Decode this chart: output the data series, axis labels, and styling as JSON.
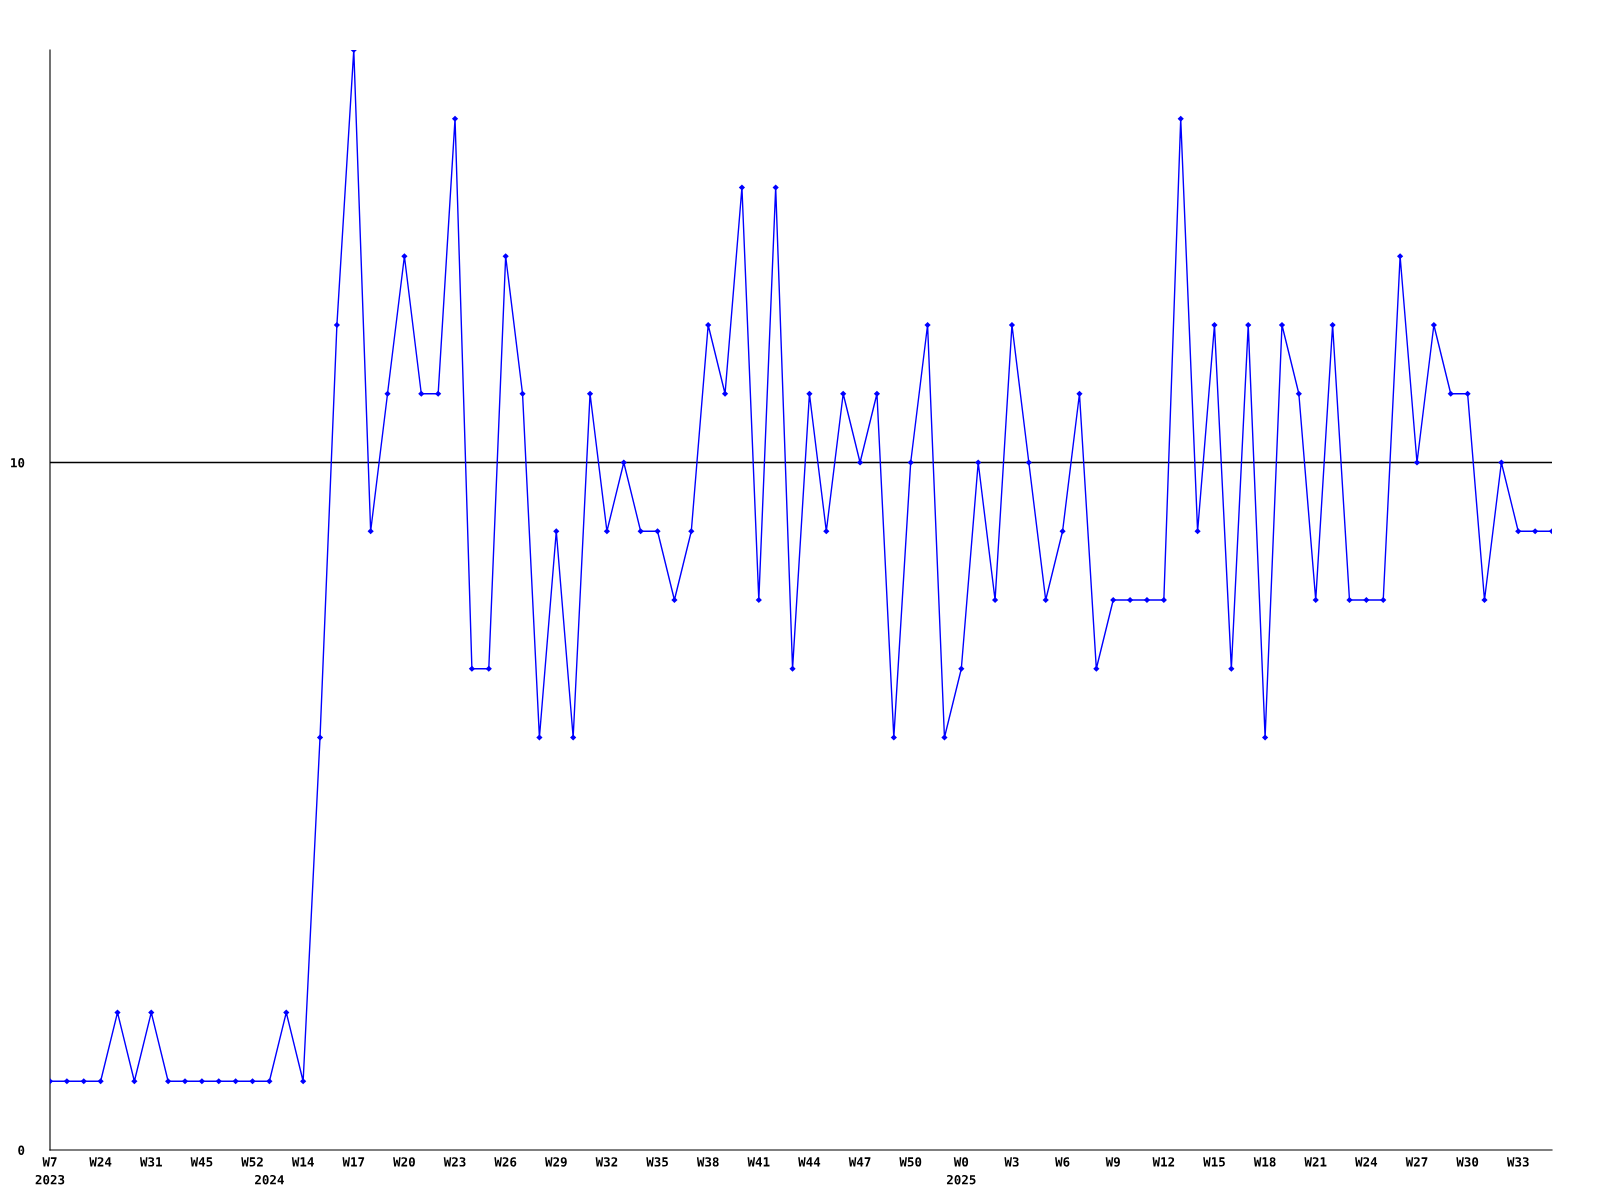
{
  "chart_data": {
    "type": "line",
    "categories": [
      "W7\n2023",
      null,
      null,
      "W24",
      null,
      null,
      "W31",
      null,
      null,
      "W45",
      null,
      null,
      "W52",
      "\n2024",
      null,
      "W14",
      null,
      null,
      "W17",
      null,
      null,
      "W20",
      null,
      null,
      "W23",
      null,
      null,
      "W26",
      null,
      null,
      "W29",
      null,
      null,
      "W32",
      null,
      null,
      "W35",
      null,
      null,
      "W38",
      null,
      null,
      "W41",
      null,
      null,
      "W44",
      null,
      null,
      "W47",
      null,
      null,
      "W50",
      null,
      null,
      "W0\n2025",
      null,
      null,
      "W3",
      null,
      null,
      "W6",
      null,
      null,
      "W9",
      null,
      null,
      "W12",
      null,
      null,
      "W15",
      null,
      null,
      "W18",
      null,
      null,
      "W21",
      null,
      null,
      "W24",
      null,
      null,
      "W27",
      null,
      null,
      "W30",
      null,
      null,
      "W33",
      null,
      null
    ],
    "series": [
      {
        "color": "#0000ff",
        "values": [
          1,
          1,
          1,
          1,
          2,
          1,
          2,
          1,
          1,
          1,
          1,
          1,
          1,
          1,
          2,
          1,
          6,
          12,
          16,
          9,
          11,
          13,
          11,
          11,
          15,
          7,
          7,
          13,
          11,
          6,
          9,
          6,
          11,
          9,
          10,
          9,
          9,
          8,
          9,
          12,
          11,
          14,
          8,
          14,
          7,
          11,
          9,
          11,
          10,
          11,
          6,
          10,
          12,
          6,
          7,
          10,
          8,
          12,
          10,
          8,
          9,
          11,
          7,
          8,
          8,
          8,
          8,
          15,
          9,
          12,
          7,
          12,
          6,
          12,
          11,
          8,
          12,
          8,
          8,
          8,
          13,
          10,
          12,
          11,
          11,
          8,
          10,
          9,
          9,
          9
        ]
      }
    ],
    "ylim": [
      0,
      16
    ],
    "yticks": [
      0,
      10
    ],
    "ref_lines": [
      {
        "axis": "y",
        "value": 10,
        "color": "#000000"
      }
    ],
    "marker": "diamond",
    "line_style": "solid",
    "grid": false,
    "legend": false
  }
}
